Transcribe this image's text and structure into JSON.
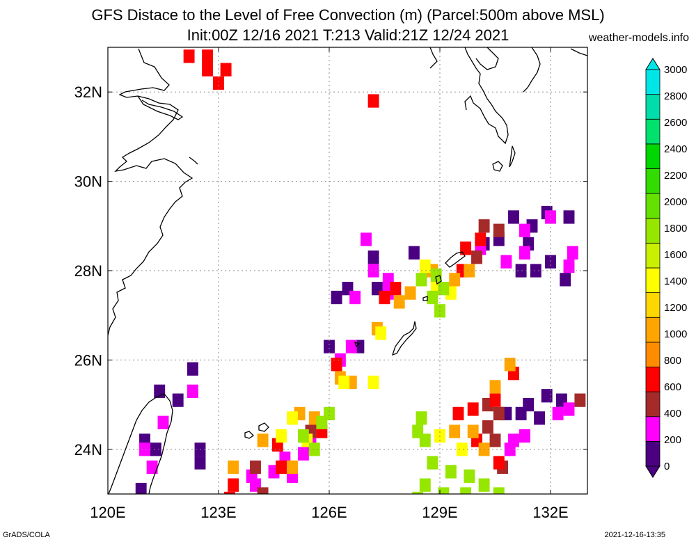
{
  "title": {
    "line1": "GFS Distace to the Level of Free Convection (m) (Parcel:500m above MSL)",
    "line2": "Init:00Z 12/16 2021 T:213 Valid:21Z 12/24 2021"
  },
  "credit": "weather-models.info",
  "footer": {
    "left": "GrADS/COLA",
    "right": "2021-12-16-13:35"
  },
  "map": {
    "lon_range": [
      120,
      133
    ],
    "lat_range": [
      23,
      33
    ],
    "lon_ticks": [
      {
        "value": 120,
        "label": "120E"
      },
      {
        "value": 123,
        "label": "123E"
      },
      {
        "value": 126,
        "label": "126E"
      },
      {
        "value": 129,
        "label": "129E"
      },
      {
        "value": 132,
        "label": "132E"
      }
    ],
    "lat_ticks": [
      {
        "value": 24,
        "label": "24N"
      },
      {
        "value": 26,
        "label": "26N"
      },
      {
        "value": 28,
        "label": "28N"
      },
      {
        "value": 30,
        "label": "30N"
      },
      {
        "value": 32,
        "label": "32N"
      }
    ],
    "grid": true,
    "coastline_color": "#000000"
  },
  "colorbar": {
    "levels": [
      0,
      200,
      400,
      600,
      800,
      1000,
      1200,
      1400,
      1600,
      1800,
      2000,
      2200,
      2400,
      2600,
      2800,
      3000
    ],
    "labels": [
      "0",
      "200",
      "400",
      "600",
      "800",
      "1000",
      "1200",
      "1400",
      "1600",
      "1800",
      "2000",
      "2200",
      "2400",
      "2600",
      "2800",
      "3000"
    ],
    "colors": [
      "#4b0082",
      "#ff00ff",
      "#a52a2a",
      "#ff0000",
      "#ff8c00",
      "#ffa500",
      "#ffd700",
      "#ffff00",
      "#c8f000",
      "#96e600",
      "#64e100",
      "#32dc00",
      "#00d700",
      "#00e16e",
      "#00dcaa",
      "#00e6e6"
    ],
    "under_color": "#4b0082",
    "over_color": "#00e6e6"
  },
  "field_regions": [
    {
      "color": "#ff0000",
      "cells": [
        [
          122.2,
          32.8
        ],
        [
          122.7,
          32.8
        ],
        [
          122.7,
          32.5
        ],
        [
          123.2,
          32.5
        ],
        [
          123.0,
          32.2
        ],
        [
          127.2,
          31.8
        ]
      ]
    },
    {
      "color": "#4b0082",
      "cells": [
        [
          121.4,
          25.3
        ],
        [
          121.9,
          25.1
        ],
        [
          121.0,
          24.2
        ],
        [
          121.3,
          24.0
        ],
        [
          122.5,
          24.0
        ],
        [
          122.5,
          23.7
        ],
        [
          122.3,
          25.8
        ],
        [
          120.9,
          23.1
        ],
        [
          130.6,
          28.7
        ],
        [
          131.4,
          28.6
        ],
        [
          131.0,
          29.2
        ],
        [
          131.5,
          29.0
        ],
        [
          132.0,
          28.2
        ],
        [
          131.6,
          28.0
        ],
        [
          131.2,
          28.0
        ],
        [
          132.4,
          27.8
        ],
        [
          131.9,
          29.3
        ],
        [
          132.5,
          29.2
        ],
        [
          127.3,
          27.6
        ],
        [
          126.2,
          27.4
        ],
        [
          126.5,
          27.6
        ],
        [
          128.3,
          28.4
        ],
        [
          127.2,
          28.3
        ],
        [
          130.2,
          28.6
        ],
        [
          126.0,
          26.3
        ],
        [
          126.8,
          26.3
        ],
        [
          131.4,
          25.0
        ],
        [
          131.9,
          25.2
        ],
        [
          132.3,
          25.1
        ],
        [
          131.2,
          24.8
        ],
        [
          130.8,
          24.8
        ],
        [
          131.7,
          24.7
        ]
      ]
    },
    {
      "color": "#ff00ff",
      "cells": [
        [
          121.0,
          24.0
        ],
        [
          121.2,
          23.6
        ],
        [
          121.5,
          24.6
        ],
        [
          122.3,
          25.3
        ],
        [
          130.1,
          28.5
        ],
        [
          130.8,
          28.2
        ],
        [
          131.3,
          28.4
        ],
        [
          132.0,
          29.2
        ],
        [
          132.6,
          28.4
        ],
        [
          132.5,
          28.1
        ],
        [
          131.3,
          28.9
        ],
        [
          126.3,
          26.0
        ],
        [
          126.6,
          26.3
        ],
        [
          126.7,
          27.4
        ],
        [
          127.2,
          28.0
        ],
        [
          127.6,
          27.8
        ],
        [
          127.6,
          27.5
        ],
        [
          127.0,
          28.7
        ],
        [
          124.5,
          23.5
        ],
        [
          125.0,
          23.4
        ],
        [
          124.8,
          23.8
        ],
        [
          125.3,
          23.9
        ],
        [
          125.5,
          24.1
        ],
        [
          124.0,
          23.2
        ],
        [
          123.9,
          23.4
        ],
        [
          131.0,
          24.2
        ],
        [
          130.9,
          24.0
        ],
        [
          131.3,
          24.3
        ],
        [
          132.2,
          24.8
        ],
        [
          132.5,
          24.9
        ]
      ]
    },
    {
      "color": "#a52a2a",
      "cells": [
        [
          130.2,
          29.0
        ],
        [
          130.6,
          28.9
        ],
        [
          130.0,
          28.3
        ],
        [
          132.8,
          25.1
        ],
        [
          130.3,
          25.0
        ],
        [
          130.6,
          24.8
        ],
        [
          130.7,
          23.6
        ],
        [
          124.0,
          23.6
        ],
        [
          124.2,
          23.0
        ],
        [
          125.5,
          24.4
        ],
        [
          130.3,
          24.5
        ],
        [
          130.5,
          24.2
        ]
      ]
    },
    {
      "color": "#ff0000",
      "cells": [
        [
          129.7,
          28.5
        ],
        [
          130.1,
          28.7
        ],
        [
          129.6,
          28.0
        ],
        [
          127.8,
          27.6
        ],
        [
          127.5,
          27.4
        ],
        [
          126.2,
          25.9
        ],
        [
          123.4,
          23.2
        ],
        [
          123.3,
          22.9
        ],
        [
          124.6,
          24.1
        ],
        [
          124.7,
          23.6
        ],
        [
          125.8,
          24.4
        ],
        [
          129.5,
          24.8
        ],
        [
          129.9,
          24.9
        ],
        [
          130.5,
          25.1
        ],
        [
          130.0,
          24.2
        ],
        [
          130.6,
          23.7
        ],
        [
          131.0,
          25.7
        ]
      ]
    },
    {
      "color": "#ffa500",
      "cells": [
        [
          128.8,
          28.0
        ],
        [
          129.4,
          27.8
        ],
        [
          129.8,
          28.0
        ],
        [
          128.2,
          27.5
        ],
        [
          127.9,
          27.3
        ],
        [
          127.3,
          26.7
        ],
        [
          126.3,
          25.6
        ],
        [
          126.6,
          25.5
        ],
        [
          123.4,
          23.6
        ],
        [
          124.2,
          24.2
        ],
        [
          125.2,
          24.8
        ],
        [
          125.6,
          24.7
        ],
        [
          129.4,
          24.4
        ],
        [
          129.9,
          24.4
        ],
        [
          130.2,
          24.0
        ],
        [
          130.9,
          25.9
        ],
        [
          130.5,
          25.4
        ],
        [
          125.0,
          23.6
        ]
      ]
    },
    {
      "color": "#ffff00",
      "cells": [
        [
          128.6,
          28.1
        ],
        [
          128.9,
          27.6
        ],
        [
          129.3,
          27.5
        ],
        [
          127.4,
          26.6
        ],
        [
          126.4,
          25.5
        ],
        [
          125.0,
          24.7
        ],
        [
          125.4,
          24.2
        ],
        [
          124.7,
          24.3
        ],
        [
          129.0,
          24.3
        ],
        [
          129.6,
          24.0
        ],
        [
          127.2,
          25.5
        ]
      ]
    },
    {
      "color": "#96e600",
      "cells": [
        [
          128.5,
          27.8
        ],
        [
          128.9,
          27.9
        ],
        [
          129.1,
          27.6
        ],
        [
          128.8,
          27.4
        ],
        [
          129.0,
          27.1
        ],
        [
          125.3,
          24.3
        ],
        [
          125.8,
          24.6
        ],
        [
          126.0,
          24.8
        ],
        [
          125.6,
          24.0
        ],
        [
          128.6,
          24.2
        ],
        [
          128.8,
          23.7
        ],
        [
          129.3,
          23.5
        ],
        [
          129.8,
          23.4
        ],
        [
          130.2,
          23.2
        ],
        [
          128.6,
          23.2
        ],
        [
          128.4,
          22.9
        ],
        [
          129.1,
          23.0
        ],
        [
          129.7,
          23.0
        ],
        [
          130.6,
          23.0
        ],
        [
          128.5,
          24.7
        ],
        [
          128.4,
          24.4
        ]
      ]
    }
  ]
}
